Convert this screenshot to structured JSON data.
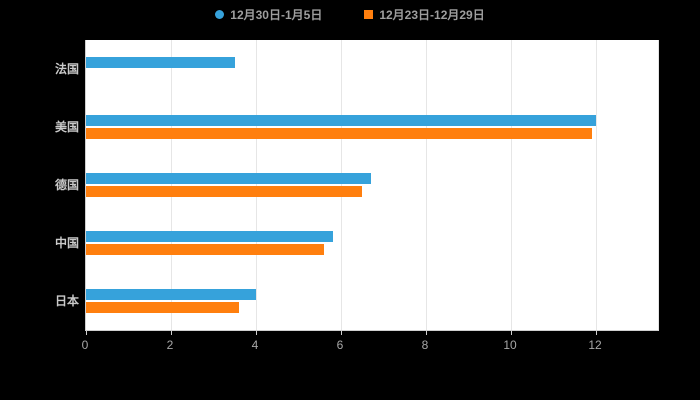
{
  "colors": {
    "series1": "#36A2DB",
    "series2": "#FF7F0E",
    "plot_bg": "#ffffff",
    "page_bg": "#000000",
    "grid": "#e6e6e6",
    "axis_text": "#a7a7a7",
    "category_text": "#c9c9c9"
  },
  "legend": {
    "items": [
      {
        "label": "12月30日-1月5日",
        "color": "#36A2DB",
        "marker": "circle"
      },
      {
        "label": "12月23日-12月29日",
        "color": "#FF7F0E",
        "marker": "square"
      }
    ]
  },
  "chart_data": {
    "type": "bar",
    "orientation": "horizontal",
    "title": "",
    "xlabel": "",
    "ylabel": "",
    "categories": [
      "法国",
      "美国",
      "德国",
      "中国",
      "日本"
    ],
    "series": [
      {
        "name": "12月30日-1月5日",
        "color": "#36A2DB",
        "values": [
          3.5,
          12,
          6.7,
          5.8,
          4.0
        ]
      },
      {
        "name": "12月23日-12月29日",
        "color": "#FF7F0E",
        "values": [
          0,
          11.9,
          6.5,
          5.6,
          3.6
        ]
      }
    ],
    "xlim": [
      0,
      12
    ],
    "x_ticks": [
      0,
      2,
      4,
      6,
      8,
      10,
      12
    ],
    "grid": true,
    "legend_position": "top"
  }
}
